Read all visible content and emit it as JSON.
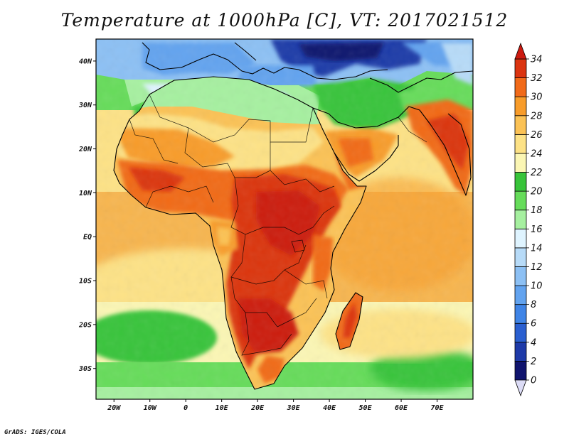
{
  "title": "Temperature at 1000hPa [C], VT: 2017021512",
  "credit": "GrADS: IGES/COLA",
  "map": {
    "lon_range": [
      -25,
      80
    ],
    "lat_range": [
      -37,
      45
    ],
    "lon_ticks": [
      {
        "value": -20,
        "label": "20W"
      },
      {
        "value": -10,
        "label": "10W"
      },
      {
        "value": 0,
        "label": "0"
      },
      {
        "value": 10,
        "label": "10E"
      },
      {
        "value": 20,
        "label": "20E"
      },
      {
        "value": 30,
        "label": "30E"
      },
      {
        "value": 40,
        "label": "40E"
      },
      {
        "value": 50,
        "label": "50E"
      },
      {
        "value": 60,
        "label": "60E"
      },
      {
        "value": 70,
        "label": "70E"
      }
    ],
    "lat_ticks": [
      {
        "value": 40,
        "label": "40N"
      },
      {
        "value": 30,
        "label": "30N"
      },
      {
        "value": 20,
        "label": "20N"
      },
      {
        "value": 10,
        "label": "10N"
      },
      {
        "value": 0,
        "label": "EQ"
      },
      {
        "value": -10,
        "label": "10S"
      },
      {
        "value": -20,
        "label": "20S"
      },
      {
        "value": -30,
        "label": "30S"
      }
    ]
  },
  "colorbar": {
    "levels": [
      0,
      2,
      4,
      6,
      8,
      10,
      12,
      14,
      16,
      18,
      20,
      22,
      24,
      26,
      28,
      30,
      32,
      34
    ],
    "colors": [
      "#10146e",
      "#1e3aa8",
      "#2a5fd0",
      "#3f84e6",
      "#62a3ef",
      "#8cc0f4",
      "#b7dbf8",
      "#dff4ff",
      "#a6f0a0",
      "#66dc5a",
      "#38c43a",
      "#fbf6b4",
      "#fde286",
      "#fbc255",
      "#f89c2a",
      "#f16a19",
      "#db3410"
    ],
    "below_color": "#dcdcf6",
    "above_color": "#cc1a10"
  }
}
